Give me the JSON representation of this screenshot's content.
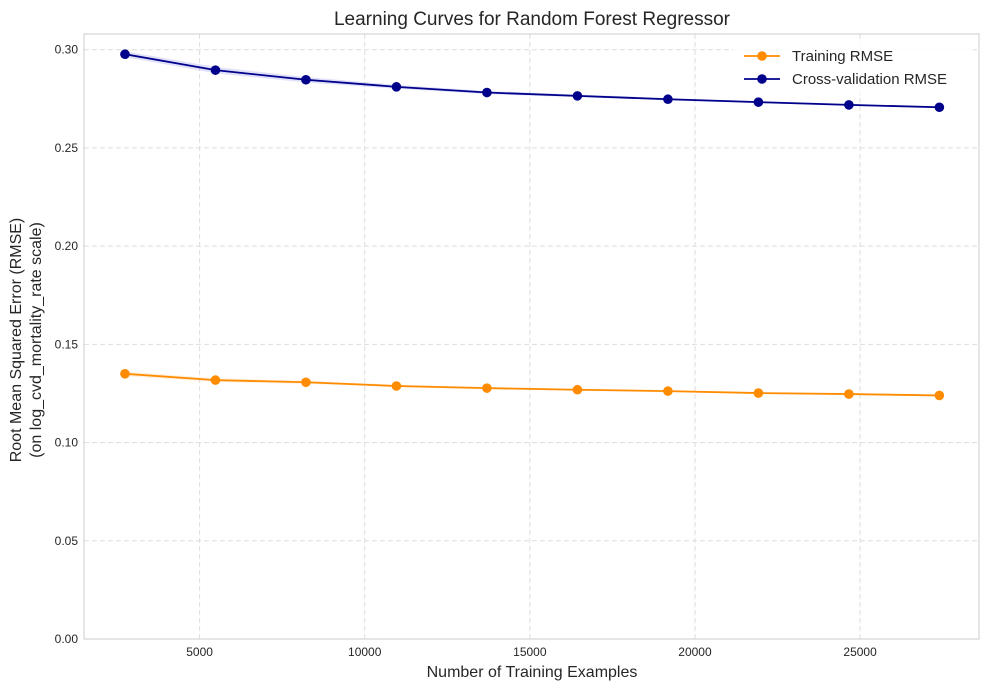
{
  "chart_data": {
    "type": "line",
    "title": "Learning Curves for Random Forest Regressor",
    "xlabel": "Number of Training Examples",
    "ylabel_lines": [
      "Root Mean Squared Error (RMSE)",
      "(on log_cvd_mortality_rate scale)"
    ],
    "xlim": [
      1500,
      28600
    ],
    "ylim": [
      0.0,
      0.308
    ],
    "x_ticks": [
      5000,
      10000,
      15000,
      20000,
      25000
    ],
    "y_ticks": [
      0.0,
      0.05,
      0.1,
      0.15,
      0.2,
      0.25,
      0.3
    ],
    "y_tick_labels": [
      "0.00",
      "0.05",
      "0.10",
      "0.15",
      "0.20",
      "0.25",
      "0.30"
    ],
    "grid": true,
    "legend_position": "top-right",
    "x": [
      2740,
      5480,
      8220,
      10960,
      13700,
      16440,
      19180,
      21920,
      24660,
      27400
    ],
    "series": [
      {
        "name": "Training RMSE",
        "color": "#ff8c00",
        "band_color": "#ff8c00",
        "values": [
          0.135,
          0.1318,
          0.1307,
          0.1288,
          0.1277,
          0.1269,
          0.1262,
          0.1252,
          0.1247,
          0.124
        ],
        "band": [
          0.0012,
          0.001,
          0.0008,
          0.0007,
          0.0006,
          0.0005,
          0.0005,
          0.0004,
          0.0004,
          0.0004
        ]
      },
      {
        "name": "Cross-validation RMSE",
        "color": "#00008b",
        "band_color": "#0000cd",
        "values": [
          0.2977,
          0.2896,
          0.2847,
          0.2811,
          0.2782,
          0.2765,
          0.2748,
          0.2733,
          0.2719,
          0.2707
        ],
        "band": [
          0.0015,
          0.0016,
          0.0014,
          0.001,
          0.0008,
          0.0007,
          0.0006,
          0.0005,
          0.0005,
          0.0004
        ]
      }
    ]
  }
}
